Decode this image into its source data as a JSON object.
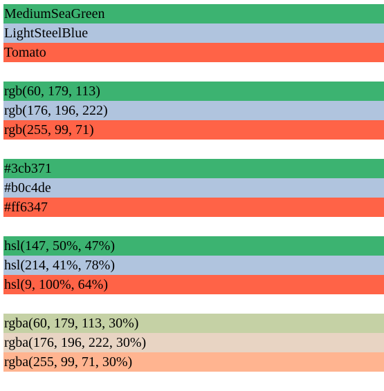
{
  "groups": [
    {
      "rows": [
        {
          "label": "MediumSeaGreen",
          "color": "#3cb371"
        },
        {
          "label": "LightSteelBlue",
          "color": "#b0c4de"
        },
        {
          "label": "Tomato",
          "color": "#ff6347"
        }
      ]
    },
    {
      "rows": [
        {
          "label": "rgb(60, 179, 113)",
          "color": "#3cb371"
        },
        {
          "label": "rgb(176, 196, 222)",
          "color": "#b0c4de"
        },
        {
          "label": "rgb(255, 99, 71)",
          "color": "#ff6347"
        }
      ]
    },
    {
      "rows": [
        {
          "label": "#3cb371",
          "color": "#3cb371"
        },
        {
          "label": "#b0c4de",
          "color": "#b0c4de"
        },
        {
          "label": "#ff6347",
          "color": "#ff6347"
        }
      ]
    },
    {
      "rows": [
        {
          "label": "hsl(147, 50%, 47%)",
          "color": "#3cb371"
        },
        {
          "label": "hsl(214, 41%, 78%)",
          "color": "#b0c4de"
        },
        {
          "label": "hsl(9, 100%, 64%)",
          "color": "#ff6347"
        }
      ]
    },
    {
      "rows": [
        {
          "label": "rgba(60, 179, 113, 30%)",
          "color": "#c5d1a5"
        },
        {
          "label": "rgba(176, 196, 222, 30%)",
          "color": "#e8d4c3"
        },
        {
          "label": "rgba(255, 99, 71, 30%)",
          "color": "#ffb490"
        }
      ]
    }
  ]
}
